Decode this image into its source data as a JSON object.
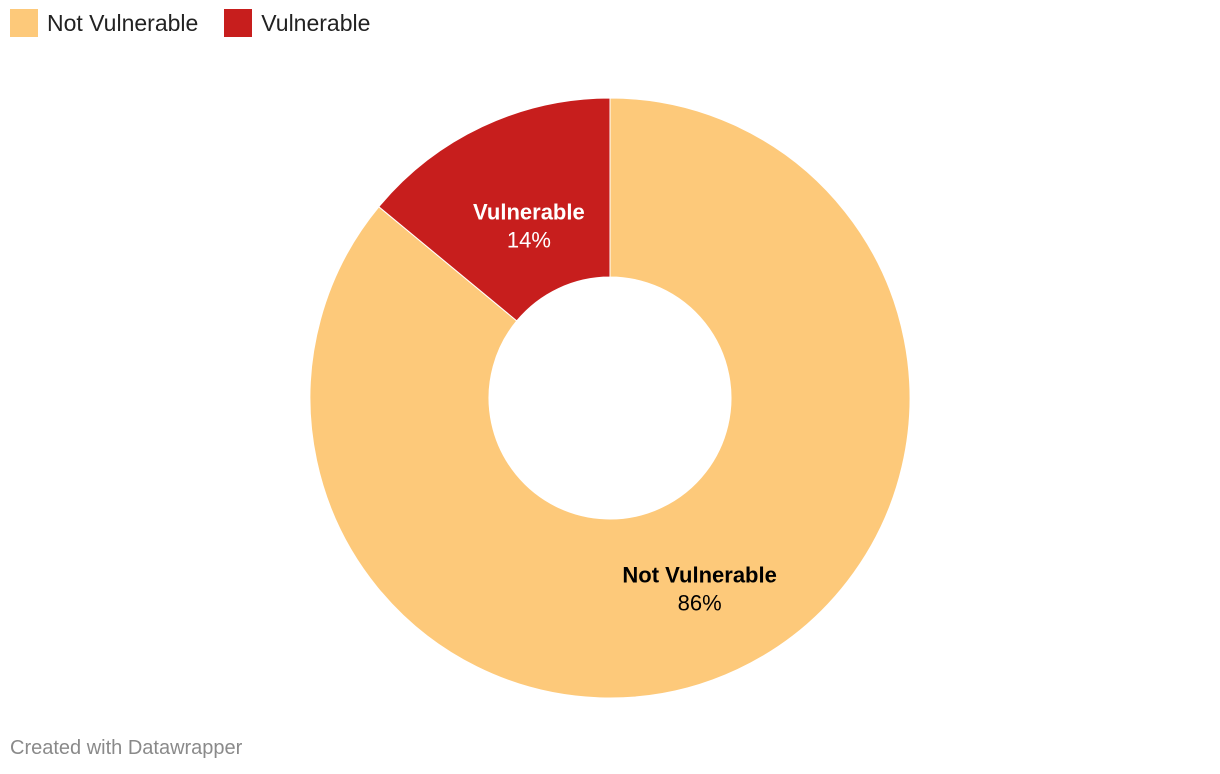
{
  "chart_data": {
    "type": "pie",
    "donut": true,
    "categories": [
      "Not Vulnerable",
      "Vulnerable"
    ],
    "values": [
      86,
      14
    ],
    "value_labels": [
      "86%",
      "14%"
    ],
    "colors": [
      "#fdc97a",
      "#c71e1d"
    ],
    "label_colors": [
      "#000000",
      "#ffffff"
    ],
    "legend": {
      "position": "top-left",
      "entries": [
        "Not Vulnerable",
        "Vulnerable"
      ]
    }
  },
  "footer": {
    "credit": "Created with Datawrapper"
  }
}
